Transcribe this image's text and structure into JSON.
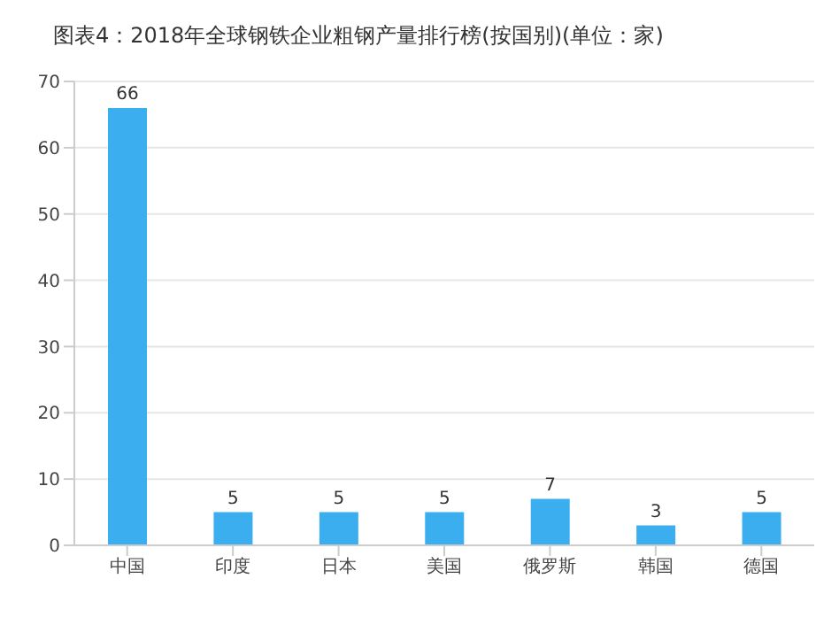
{
  "chart_data": {
    "type": "bar",
    "title": "图表4：2018年全球钢铁企业粗钢产量排行榜(按国别)(单位：家)",
    "categories": [
      "中国",
      "印度",
      "日本",
      "美国",
      "俄罗斯",
      "韩国",
      "德国"
    ],
    "values": [
      66,
      5,
      5,
      5,
      7,
      3,
      5
    ],
    "color": "#3aaeee",
    "ylim": [
      0,
      70
    ],
    "yticks": [
      0,
      10,
      20,
      30,
      40,
      50,
      60,
      70
    ],
    "grid": "y",
    "data_labels": true
  }
}
